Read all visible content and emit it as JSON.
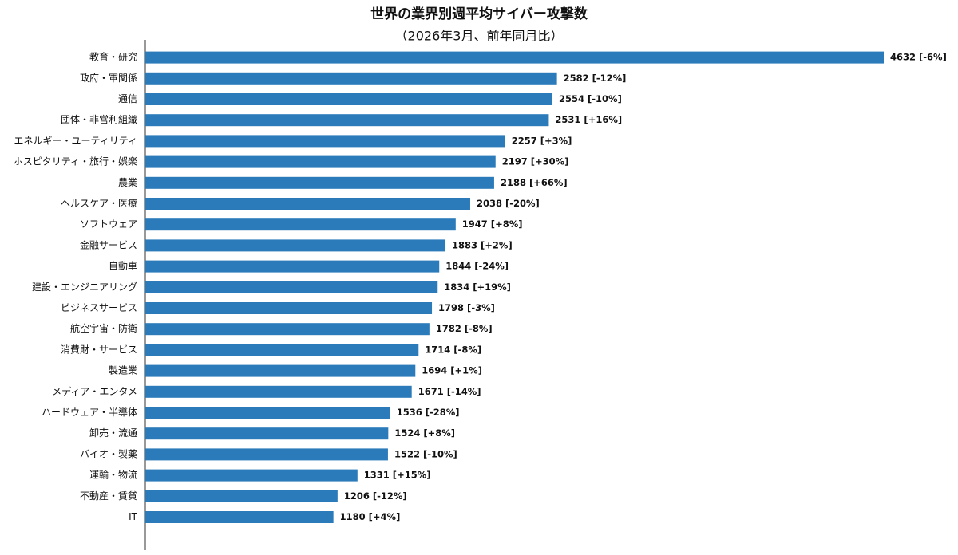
{
  "chart_data": {
    "type": "bar",
    "orientation": "horizontal",
    "title": "世界の業界別週平均サイバー攻撃数",
    "subtitle": "（2026年3月、前年同月比）",
    "color": "#2b7bba",
    "categories": [
      "教育・研究",
      "政府・軍関係",
      "通信",
      "団体・非営利組織",
      "エネルギー・ユーティリティ",
      "ホスピタリティ・旅行・娯楽",
      "農業",
      "ヘルスケア・医療",
      "ソフトウェア",
      "金融サービス",
      "自動車",
      "建設・エンジニアリング",
      "ビジネスサービス",
      "航空宇宙・防衛",
      "消費財・サービス",
      "製造業",
      "メディア・エンタメ",
      "ハードウェア・半導体",
      "卸売・流通",
      "バイオ・製薬",
      "運輸・物流",
      "不動産・賃貸",
      "IT"
    ],
    "values": [
      4632,
      2582,
      2554,
      2531,
      2257,
      2197,
      2188,
      2038,
      1947,
      1883,
      1844,
      1834,
      1798,
      1782,
      1714,
      1694,
      1671,
      1536,
      1524,
      1522,
      1331,
      1206,
      1180
    ],
    "value_labels": [
      "4632 [-6%]",
      "2582 [-12%]",
      "2554 [-10%]",
      "2531 [+16%]",
      "2257 [+3%]",
      "2197 [+30%]",
      "2188 [+66%]",
      "2038 [-20%]",
      "1947 [+8%]",
      "1883 [+2%]",
      "1844 [-24%]",
      "1834 [+19%]",
      "1798 [-3%]",
      "1782 [-8%]",
      "1714 [-8%]",
      "1694 [+1%]",
      "1671 [-14%]",
      "1536 [-28%]",
      "1524 [+8%]",
      "1522 [-10%]",
      "1331 [+15%]",
      "1206 [-12%]",
      "1180 [+4%]"
    ]
  }
}
